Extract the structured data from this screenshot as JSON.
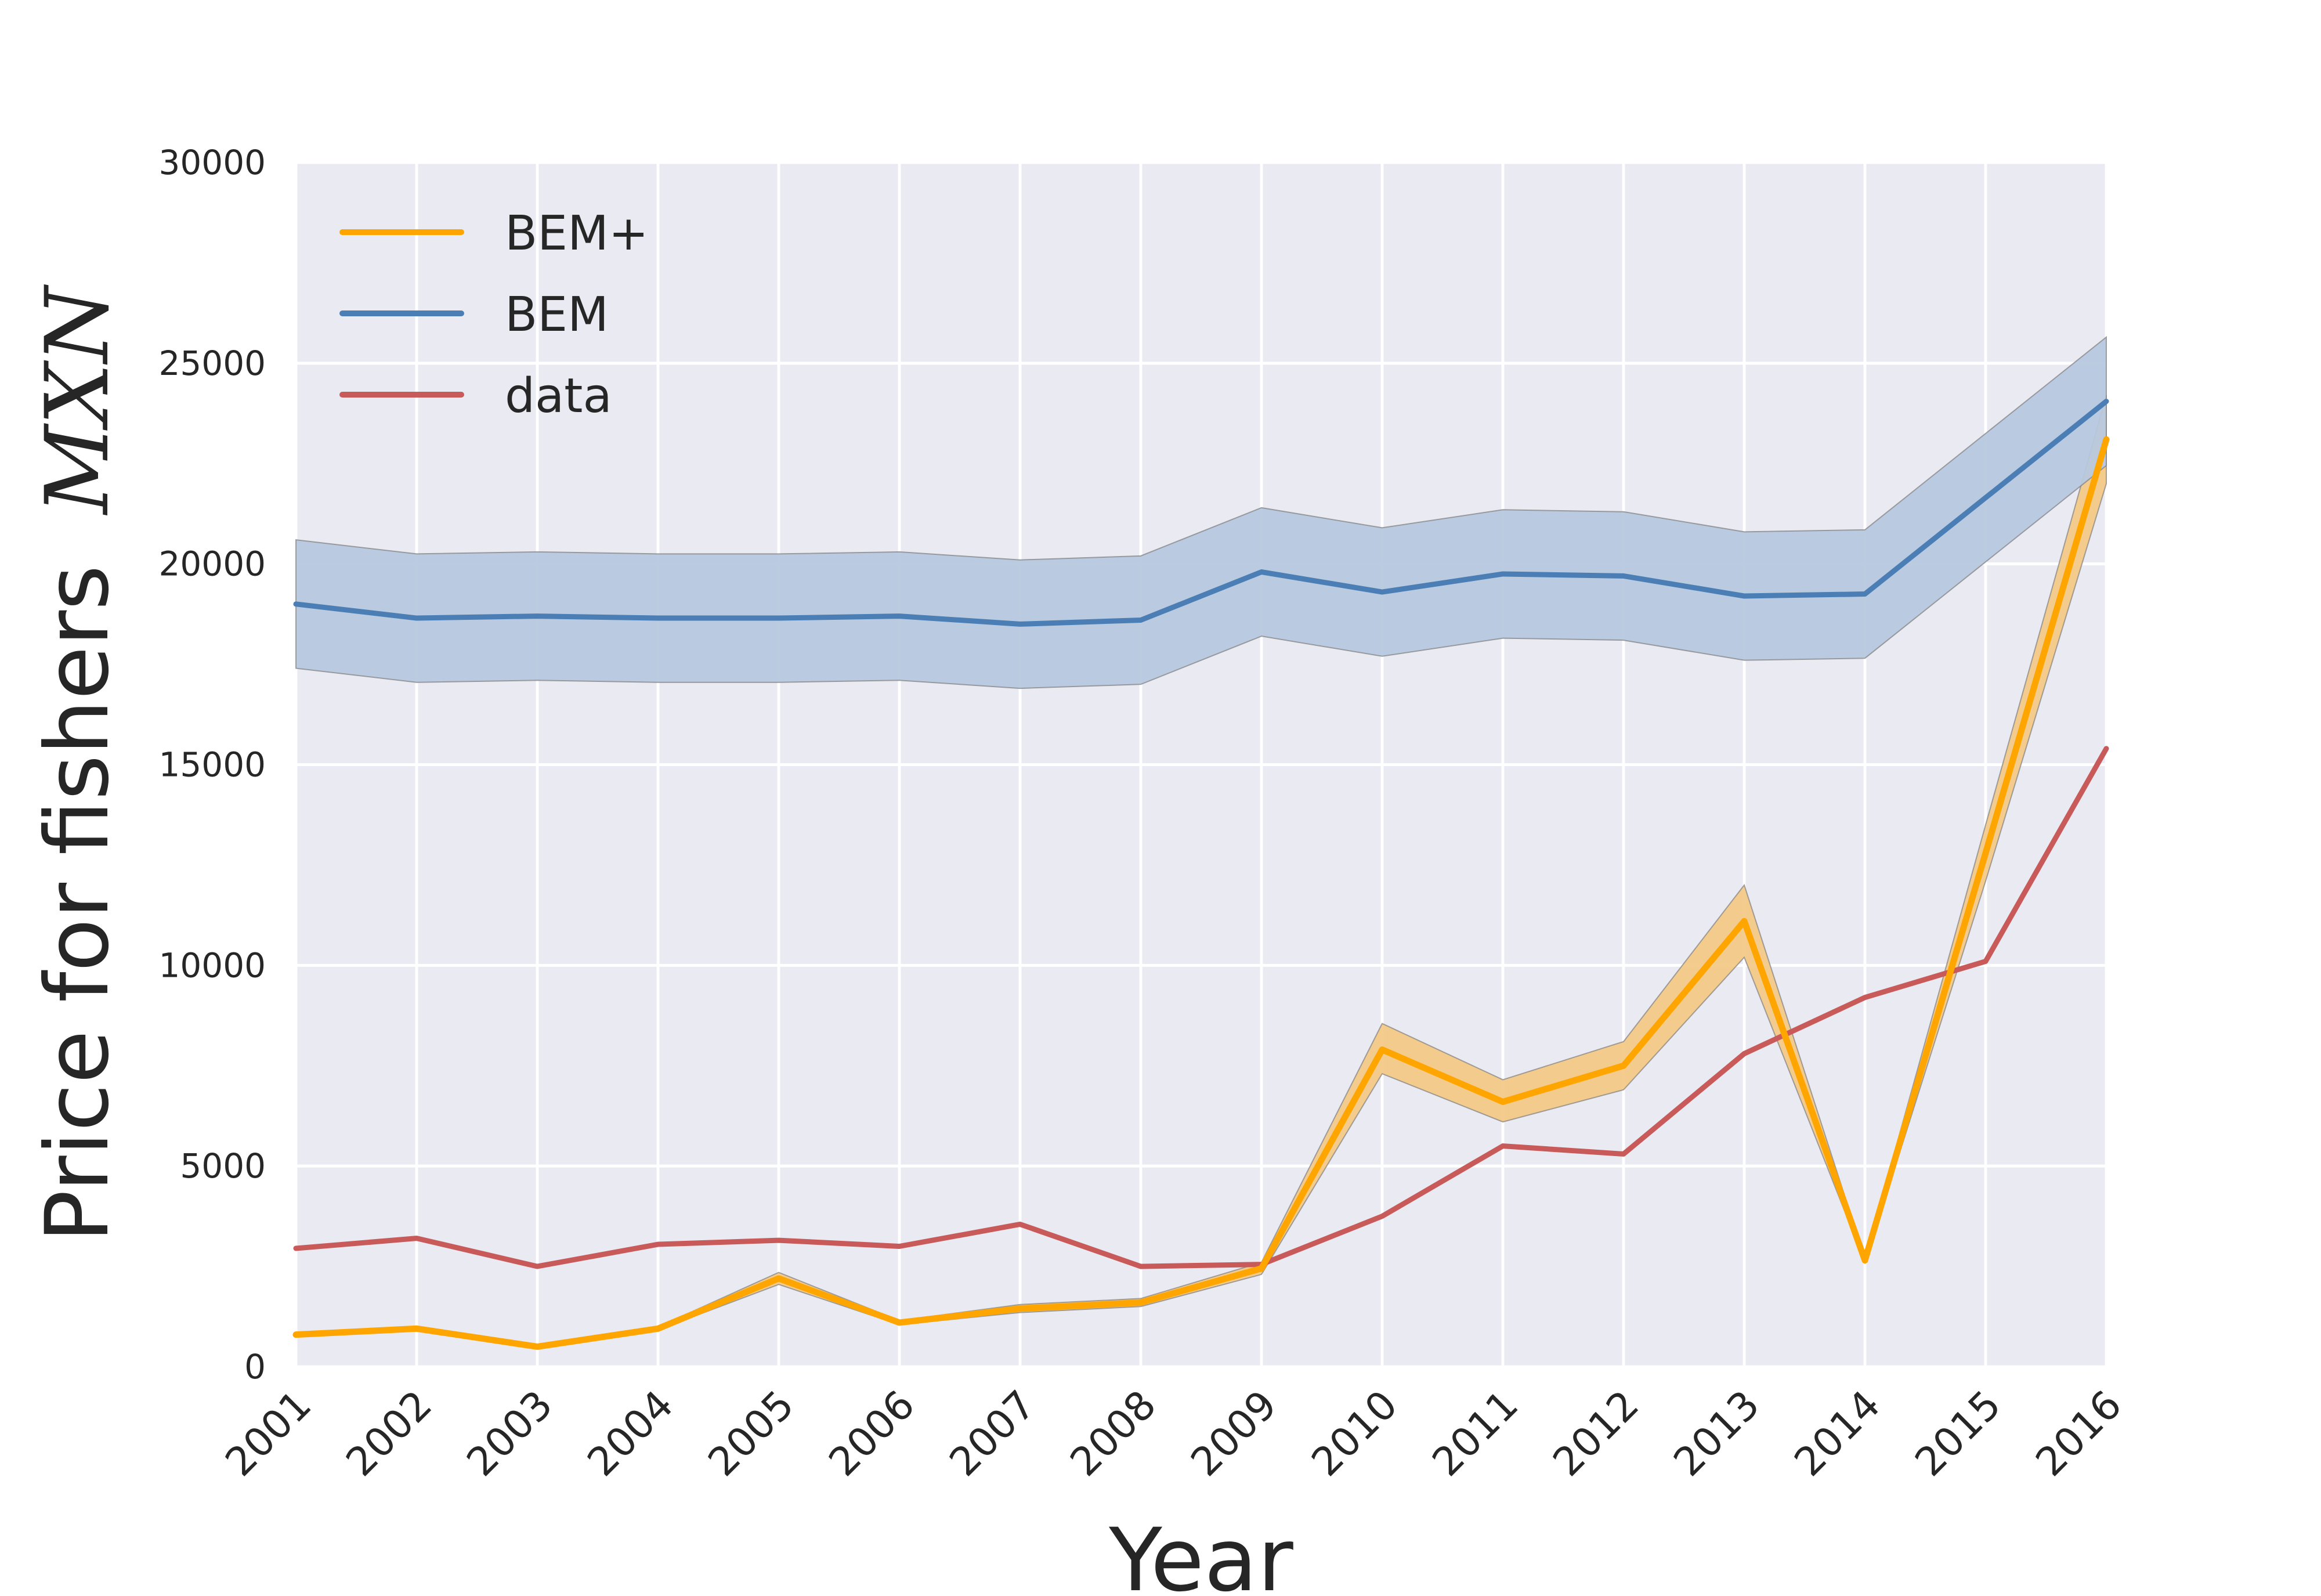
{
  "chart_data": {
    "type": "line",
    "title": "",
    "xlabel": "Year",
    "ylabel": {
      "text": "Price for fishers",
      "unit": "MXN"
    },
    "x": [
      "2001",
      "2002",
      "2003",
      "2004",
      "2005",
      "2006",
      "2007",
      "2008",
      "2009",
      "2010",
      "2011",
      "2012",
      "2013",
      "2014",
      "2015",
      "2016"
    ],
    "ylim": [
      0,
      30000
    ],
    "yticks": [
      "0",
      "5000",
      "10000",
      "15000",
      "20000",
      "25000",
      "30000"
    ],
    "grid": true,
    "legend_position": "top-left",
    "series": [
      {
        "name": "BEM+",
        "color": "#FFA500",
        "band_color": "#F3C987",
        "values": [
          800,
          950,
          500,
          950,
          2200,
          1100,
          1450,
          1600,
          2450,
          7900,
          6600,
          7500,
          11100,
          2650,
          12800,
          23100
        ],
        "lower": [
          780,
          920,
          480,
          920,
          2050,
          1050,
          1350,
          1500,
          2300,
          7300,
          6100,
          6900,
          10200,
          2600,
          12100,
          22000
        ],
        "upper": [
          820,
          990,
          520,
          990,
          2350,
          1150,
          1550,
          1700,
          2600,
          8550,
          7150,
          8100,
          12000,
          2700,
          13500,
          24200
        ]
      },
      {
        "name": "BEM",
        "color": "#4A7EB5",
        "band_color": "#B7C8DE",
        "values": [
          19000,
          18650,
          18700,
          18650,
          18650,
          18700,
          18500,
          18600,
          19800,
          19300,
          19750,
          19700,
          19200,
          19250,
          21650,
          24050
        ],
        "lower": [
          17400,
          17050,
          17100,
          17050,
          17050,
          17100,
          16900,
          17000,
          18200,
          17700,
          18150,
          18100,
          17600,
          17650,
          20050,
          22450
        ],
        "upper": [
          20600,
          20250,
          20300,
          20250,
          20250,
          20300,
          20100,
          20200,
          21400,
          20900,
          21350,
          21300,
          20800,
          20850,
          23250,
          25650
        ]
      },
      {
        "name": "data",
        "color": "#C85A5A",
        "values": [
          2950,
          3200,
          2500,
          3050,
          3150,
          3000,
          3550,
          2500,
          2550,
          3750,
          5500,
          5300,
          7800,
          9200,
          10100,
          15400
        ]
      }
    ]
  }
}
